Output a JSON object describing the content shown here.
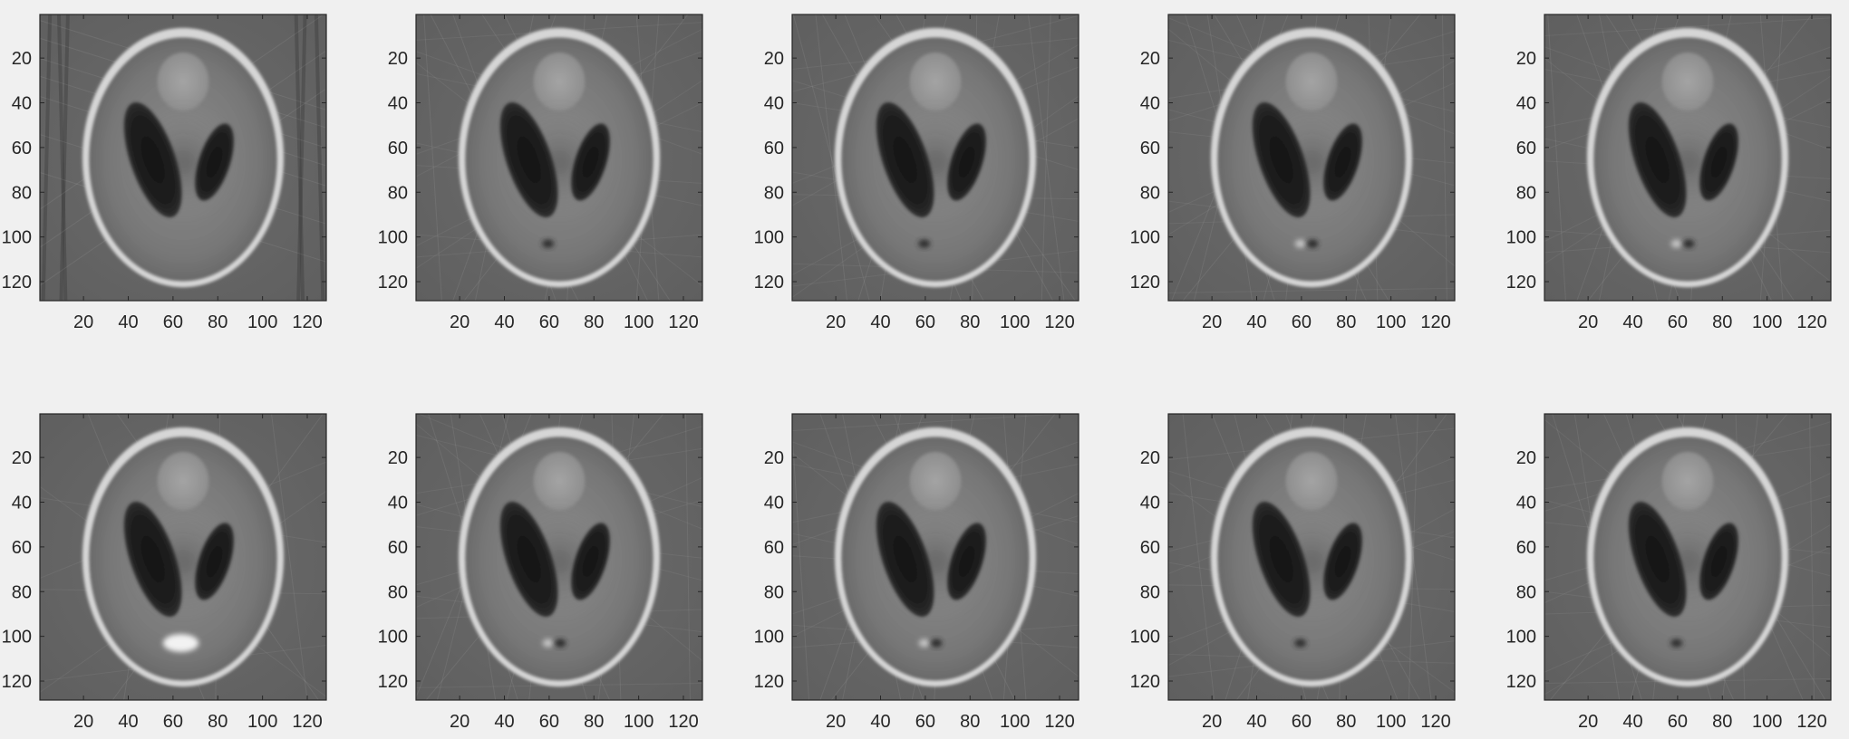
{
  "figure": {
    "background": "#f0f0f0",
    "axes_color": "#262626",
    "colormap": "gray"
  },
  "chart_data": [
    {
      "type": "heatmap",
      "image": "phantom-reconstruction",
      "xlim": [
        0.5,
        128.5
      ],
      "ylim": [
        0.5,
        128.5
      ],
      "xticks": [
        20,
        40,
        60,
        80,
        100,
        120
      ],
      "yticks": [
        20,
        40,
        60,
        80,
        100,
        120
      ],
      "y_direction": "reverse",
      "grid": false,
      "colormap": "gray",
      "streak_artifacts": "strong-vertical",
      "bottom_feature": "none"
    },
    {
      "type": "heatmap",
      "image": "phantom-reconstruction",
      "xlim": [
        0.5,
        128.5
      ],
      "ylim": [
        0.5,
        128.5
      ],
      "xticks": [
        20,
        40,
        60,
        80,
        100,
        120
      ],
      "yticks": [
        20,
        40,
        60,
        80,
        100,
        120
      ],
      "y_direction": "reverse",
      "grid": false,
      "colormap": "gray",
      "streak_artifacts": "moderate",
      "bottom_feature": "single-dark-dot"
    },
    {
      "type": "heatmap",
      "image": "phantom-reconstruction",
      "xlim": [
        0.5,
        128.5
      ],
      "ylim": [
        0.5,
        128.5
      ],
      "xticks": [
        20,
        40,
        60,
        80,
        100,
        120
      ],
      "yticks": [
        20,
        40,
        60,
        80,
        100,
        120
      ],
      "y_direction": "reverse",
      "grid": false,
      "colormap": "gray",
      "streak_artifacts": "moderate",
      "bottom_feature": "single-dark-dot"
    },
    {
      "type": "heatmap",
      "image": "phantom-reconstruction",
      "xlim": [
        0.5,
        128.5
      ],
      "ylim": [
        0.5,
        128.5
      ],
      "xticks": [
        20,
        40,
        60,
        80,
        100,
        120
      ],
      "yticks": [
        20,
        40,
        60,
        80,
        100,
        120
      ],
      "y_direction": "reverse",
      "grid": false,
      "colormap": "gray",
      "streak_artifacts": "moderate",
      "bottom_feature": "bright-and-dark-dots"
    },
    {
      "type": "heatmap",
      "image": "phantom-reconstruction",
      "xlim": [
        0.5,
        128.5
      ],
      "ylim": [
        0.5,
        128.5
      ],
      "xticks": [
        20,
        40,
        60,
        80,
        100,
        120
      ],
      "yticks": [
        20,
        40,
        60,
        80,
        100,
        120
      ],
      "y_direction": "reverse",
      "grid": false,
      "colormap": "gray",
      "streak_artifacts": "moderate",
      "bottom_feature": "bright-and-dark-dots"
    },
    {
      "type": "heatmap",
      "image": "phantom-reconstruction",
      "xlim": [
        0.5,
        128.5
      ],
      "ylim": [
        0.5,
        128.5
      ],
      "xticks": [
        20,
        40,
        60,
        80,
        100,
        120
      ],
      "yticks": [
        20,
        40,
        60,
        80,
        100,
        120
      ],
      "y_direction": "reverse",
      "grid": false,
      "colormap": "gray",
      "streak_artifacts": "light",
      "bottom_feature": "bright-blob"
    },
    {
      "type": "heatmap",
      "image": "phantom-reconstruction",
      "xlim": [
        0.5,
        128.5
      ],
      "ylim": [
        0.5,
        128.5
      ],
      "xticks": [
        20,
        40,
        60,
        80,
        100,
        120
      ],
      "yticks": [
        20,
        40,
        60,
        80,
        100,
        120
      ],
      "y_direction": "reverse",
      "grid": false,
      "colormap": "gray",
      "streak_artifacts": "moderate",
      "bottom_feature": "bright-and-dark-dots"
    },
    {
      "type": "heatmap",
      "image": "phantom-reconstruction",
      "xlim": [
        0.5,
        128.5
      ],
      "ylim": [
        0.5,
        128.5
      ],
      "xticks": [
        20,
        40,
        60,
        80,
        100,
        120
      ],
      "yticks": [
        20,
        40,
        60,
        80,
        100,
        120
      ],
      "y_direction": "reverse",
      "grid": false,
      "colormap": "gray",
      "streak_artifacts": "moderate",
      "bottom_feature": "bright-and-dark-dots"
    },
    {
      "type": "heatmap",
      "image": "phantom-reconstruction",
      "xlim": [
        0.5,
        128.5
      ],
      "ylim": [
        0.5,
        128.5
      ],
      "xticks": [
        20,
        40,
        60,
        80,
        100,
        120
      ],
      "yticks": [
        20,
        40,
        60,
        80,
        100,
        120
      ],
      "y_direction": "reverse",
      "grid": false,
      "colormap": "gray",
      "streak_artifacts": "moderate",
      "bottom_feature": "single-dark-dot"
    },
    {
      "type": "heatmap",
      "image": "phantom-reconstruction",
      "xlim": [
        0.5,
        128.5
      ],
      "ylim": [
        0.5,
        128.5
      ],
      "xticks": [
        20,
        40,
        60,
        80,
        100,
        120
      ],
      "yticks": [
        20,
        40,
        60,
        80,
        100,
        120
      ],
      "y_direction": "reverse",
      "grid": false,
      "colormap": "gray",
      "streak_artifacts": "moderate",
      "bottom_feature": "single-dark-dot"
    }
  ]
}
